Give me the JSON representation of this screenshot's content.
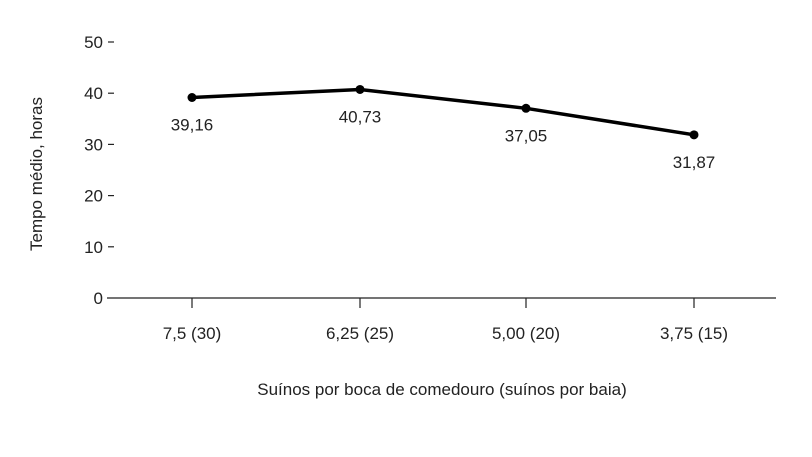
{
  "chart_data": {
    "type": "line",
    "title": "",
    "xlabel": "Suínos por boca de comedouro (suínos por baia)",
    "ylabel": "Tempo médio, horas",
    "categories": [
      "7,5 (30)",
      "6,25 (25)",
      "5,00 (20)",
      "3,75 (15)"
    ],
    "series": [
      {
        "name": "Tempo médio",
        "values": [
          39.16,
          40.73,
          37.05,
          31.87
        ],
        "labels": [
          "39,16",
          "40,73",
          "37,05",
          "31,87"
        ],
        "color": "#000000"
      }
    ],
    "ylim": [
      0,
      50
    ],
    "yticks": [
      "0",
      "10",
      "20",
      "30",
      "40",
      "50"
    ],
    "grid": false,
    "legend": "none"
  }
}
